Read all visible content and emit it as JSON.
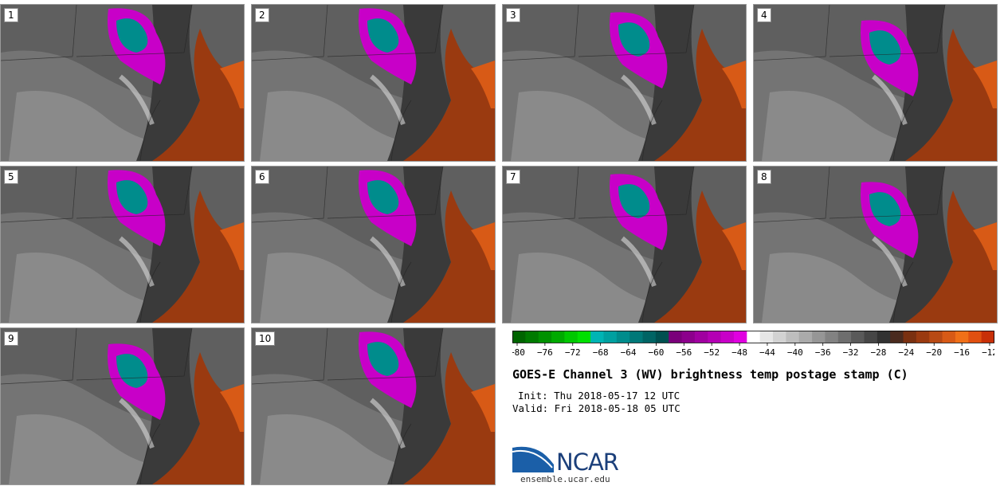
{
  "panels": [
    {
      "label": "1"
    },
    {
      "label": "2"
    },
    {
      "label": "3"
    },
    {
      "label": "4"
    },
    {
      "label": "5"
    },
    {
      "label": "6"
    },
    {
      "label": "7"
    },
    {
      "label": "8"
    },
    {
      "label": "9"
    },
    {
      "label": "10"
    }
  ],
  "colorbar": {
    "colors": [
      "#006400",
      "#007a00",
      "#009100",
      "#00aa00",
      "#00c800",
      "#00e000",
      "#00b4b4",
      "#00a0a0",
      "#008c8c",
      "#007878",
      "#006464",
      "#005050",
      "#7a007a",
      "#8c008c",
      "#a000a0",
      "#b400b4",
      "#c800c8",
      "#e000e0",
      "#ffffff",
      "#e6e6e6",
      "#d2d2d2",
      "#bebebe",
      "#aaaaaa",
      "#969696",
      "#828282",
      "#6e6e6e",
      "#5a5a5a",
      "#464646",
      "#323232",
      "#4a2a1e",
      "#7a3010",
      "#9a3a10",
      "#b84a14",
      "#d85a16",
      "#f07018",
      "#e05010",
      "#c83008"
    ],
    "ticks": [
      "−80",
      "−76",
      "−72",
      "−68",
      "−64",
      "−60",
      "−56",
      "−52",
      "−48",
      "−44",
      "−40",
      "−36",
      "−32",
      "−28",
      "−24",
      "−20",
      "−16",
      "−12"
    ]
  },
  "title": "GOES-E Channel 3 (WV) brightness temp postage stamp (C)",
  "init": "Init: Thu 2018-05-17 12 UTC",
  "valid": "Valid: Fri 2018-05-18 05 UTC",
  "logo": {
    "text": "NCAR",
    "colors": {
      "blue": "#1b5fa8",
      "dark": "#1b3f7a"
    }
  },
  "site": "ensemble.ucar.edu"
}
